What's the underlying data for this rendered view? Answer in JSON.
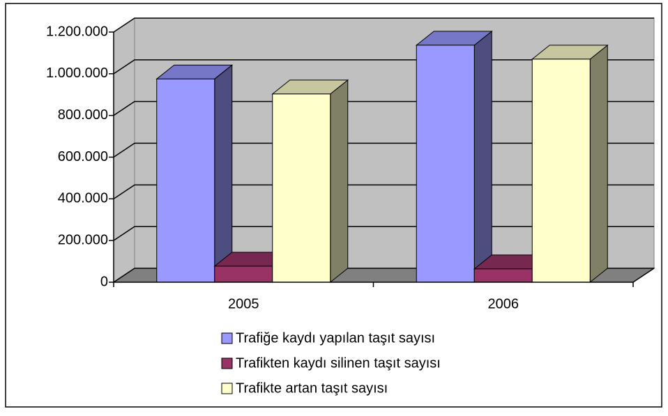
{
  "chart_data": {
    "type": "bar",
    "categories": [
      "2005",
      "2006"
    ],
    "series": [
      {
        "name": "Trafiğe kaydı yapılan taşıt sayısı",
        "color": "#9999ff",
        "values": [
          975000,
          1137000
        ]
      },
      {
        "name": "Trafikten kaydı silinen taşıt sayısı",
        "color": "#993366",
        "values": [
          77000,
          64000
        ]
      },
      {
        "name": "Trafikte artan taşıt sayısı",
        "color": "#ffffcc",
        "values": [
          903000,
          1070000
        ]
      }
    ],
    "ylim": [
      0,
      1200000
    ],
    "yticks": [
      0,
      {
        "value": 200000,
        "label": "200.000"
      },
      {
        "value": 400000,
        "label": "400.000"
      },
      {
        "value": 600000,
        "label": "600.000"
      },
      {
        "value": 800000,
        "label": "800.000"
      },
      {
        "value": 1000000,
        "label": "1.000.000"
      },
      {
        "value": 1200000,
        "label": "1.200.000"
      }
    ],
    "grid": true,
    "legend": "bottom"
  }
}
